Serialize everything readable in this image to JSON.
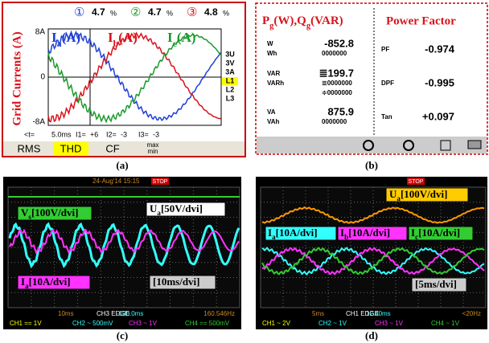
{
  "panel_a": {
    "header": [
      {
        "marker": "①",
        "value": "4.7",
        "unit": "%"
      },
      {
        "marker": "②",
        "value": "4.7",
        "unit": "%"
      },
      {
        "marker": "③",
        "value": "4.8",
        "unit": "%"
      }
    ],
    "y_label": "Grid Currents (A)",
    "y_ticks": [
      "8A",
      "0",
      "-8A"
    ],
    "traces": [
      [
        {
          "text": "I"
        },
        {
          "text": "a",
          "sub": true
        },
        {
          "text": "(A)"
        }
      ],
      [
        {
          "text": "I"
        },
        {
          "text": "b",
          "sub": true
        },
        {
          "text": "(A)"
        }
      ],
      [
        {
          "text": "I"
        },
        {
          "text": "c",
          "sub": true
        },
        {
          "text": "(A)"
        }
      ]
    ],
    "side_menu": [
      "3U",
      "3V",
      "3A",
      "L1",
      "L2",
      "L3"
    ],
    "cursor_info": [
      "<t=",
      "5.0ms",
      "I1=",
      "+6",
      "I2=",
      "-3",
      "I3=",
      "-3"
    ],
    "buttons": [
      "RMS",
      "THD",
      "CF"
    ],
    "max_min": [
      "max",
      "min"
    ],
    "caption": "(a)"
  },
  "panel_b": {
    "left_title": [
      {
        "text": "P"
      },
      {
        "text": "g",
        "sub": true
      },
      {
        "text": "(W),Q"
      },
      {
        "text": "g",
        "sub": true
      },
      {
        "text": "(VAR)"
      }
    ],
    "right_title": "Power Factor",
    "left_rows": [
      {
        "label": "W",
        "value": "-852.8"
      },
      {
        "label": "Wh",
        "value": "0000000"
      },
      {
        "label": "VAR",
        "value": "≣199.7"
      },
      {
        "label": "VARh",
        "value": "≣0000000"
      },
      {
        "label": "VA",
        "value": "875.9"
      },
      {
        "label": "VAh",
        "value": "0000000"
      }
    ],
    "varh_second": "≑0000000",
    "right_rows": [
      {
        "label": "PF",
        "value": "-0.974"
      },
      {
        "label": "DPF",
        "value": "-0.995"
      },
      {
        "label": "Tan",
        "value": "+0.097"
      }
    ],
    "caption": "(b)"
  },
  "panel_c": {
    "date": "24-Aug'14 15:15",
    "status": "STOP",
    "labels": [
      [
        {
          "text": "V"
        },
        {
          "text": "s",
          "sub": true
        },
        {
          "text": "[100V/dvi]"
        }
      ],
      [
        {
          "text": "U"
        },
        {
          "text": "a",
          "sub": true
        },
        {
          "text": "[50V/dvi]"
        }
      ],
      [
        {
          "text": "I"
        },
        {
          "text": "a",
          "sub": true
        },
        {
          "text": "[10A/dvi]"
        }
      ]
    ],
    "timebase": "[10ms/dvi]",
    "offset": "-100.0ms",
    "frequency": "160.546Hz",
    "horizontal": "10ms",
    "trigger": "CH3 EDGE",
    "channels": [
      "CH1 == 1V",
      "CH2 ~ 500mV",
      "CH3 ~ 1V",
      "CH4 == 500mV"
    ],
    "caption": "(c)"
  },
  "panel_d": {
    "status": "STOP",
    "labels": [
      [
        {
          "text": "U"
        },
        {
          "text": "a",
          "sub": true
        },
        {
          "text": "[100V/dvi]"
        }
      ],
      [
        {
          "text": "I"
        },
        {
          "text": "a",
          "sub": true
        },
        {
          "text": "[10A/dvi]"
        }
      ],
      [
        {
          "text": "I"
        },
        {
          "text": "b",
          "sub": true
        },
        {
          "text": "[10A/dvi]"
        }
      ],
      [
        {
          "text": "I"
        },
        {
          "text": "c",
          "sub": true
        },
        {
          "text": "[10A/dvi]"
        }
      ]
    ],
    "timebase": "[5ms/dvi]",
    "offset": "12.40ms",
    "frequency": "<20Hz",
    "horizontal": "5ms",
    "trigger": "CH1 EDGE",
    "channels": [
      "CH1 ~ 2V",
      "CH2 ~ 1V",
      "CH3 ~ 1V",
      "CH4 ~ 1V"
    ],
    "caption": "(d)"
  }
}
